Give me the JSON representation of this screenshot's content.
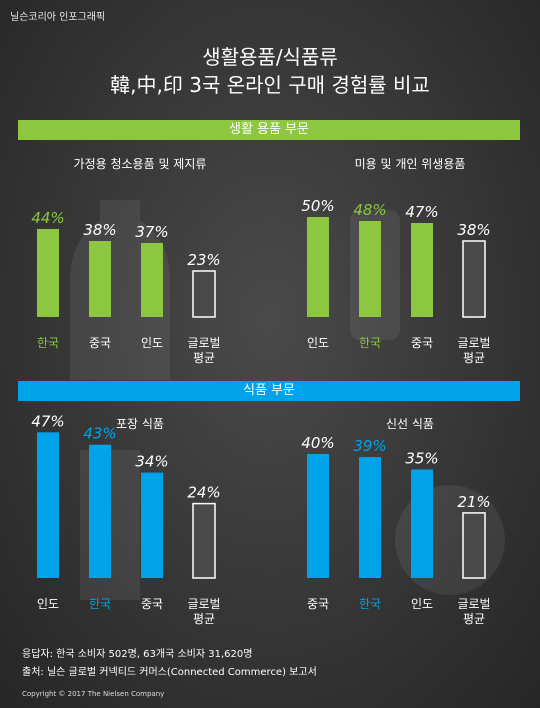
{
  "brand": "닐슨코리아 인포그래픽",
  "title_line1": "생활용품/식품류",
  "title_line2": "韓,中,印 3국 온라인 구매 경험률 비교",
  "section_household": "생활 용품 부문",
  "section_food": "식품 부문",
  "colors": {
    "green": "#8dc63f",
    "blue": "#00a2e8",
    "gray_bar": "#4a4a4a",
    "highlight_green_text": "#8dc63f",
    "highlight_blue_text": "#00a2e8"
  },
  "chart_data": [
    {
      "type": "bar",
      "title": "가정용 청소용품 및 제지류",
      "categories": [
        "한국",
        "중국",
        "인도",
        "글로벌\n평균"
      ],
      "values": [
        44,
        38,
        37,
        23
      ],
      "value_labels": [
        "44%",
        "38%",
        "37%",
        "23%"
      ],
      "bar_colors": [
        "green",
        "green",
        "green",
        "gray"
      ],
      "highlight_index": 0,
      "highlight_color": "green"
    },
    {
      "type": "bar",
      "title": "미용 및 개인 위생용품",
      "categories": [
        "인도",
        "한국",
        "중국",
        "글로벌\n평균"
      ],
      "values": [
        50,
        48,
        47,
        38
      ],
      "value_labels": [
        "50%",
        "48%",
        "47%",
        "38%"
      ],
      "bar_colors": [
        "green",
        "green",
        "green",
        "gray"
      ],
      "highlight_index": 1,
      "highlight_color": "green"
    },
    {
      "type": "bar",
      "title": "포장 식품",
      "categories": [
        "인도",
        "한국",
        "중국",
        "글로벌\n평균"
      ],
      "values": [
        47,
        43,
        34,
        24
      ],
      "value_labels": [
        "47%",
        "43%",
        "34%",
        "24%"
      ],
      "bar_colors": [
        "blue",
        "blue",
        "blue",
        "gray"
      ],
      "highlight_index": 1,
      "highlight_color": "blue"
    },
    {
      "type": "bar",
      "title": "신선 식품",
      "categories": [
        "중국",
        "한국",
        "인도",
        "글로벌\n평균"
      ],
      "values": [
        40,
        39,
        35,
        21
      ],
      "value_labels": [
        "40%",
        "39%",
        "35%",
        "21%"
      ],
      "bar_colors": [
        "blue",
        "blue",
        "blue",
        "gray"
      ],
      "highlight_index": 1,
      "highlight_color": "blue"
    }
  ],
  "footer_respondents": "응답자: 한국 소비자 502명, 63개국 소비자 31,620명",
  "footer_source": "출처: 닐슨 글로벌 커넥티드 커머스(Connected Commerce) 보고서",
  "copyright": "Copyright © 2017 The Nielsen Company"
}
